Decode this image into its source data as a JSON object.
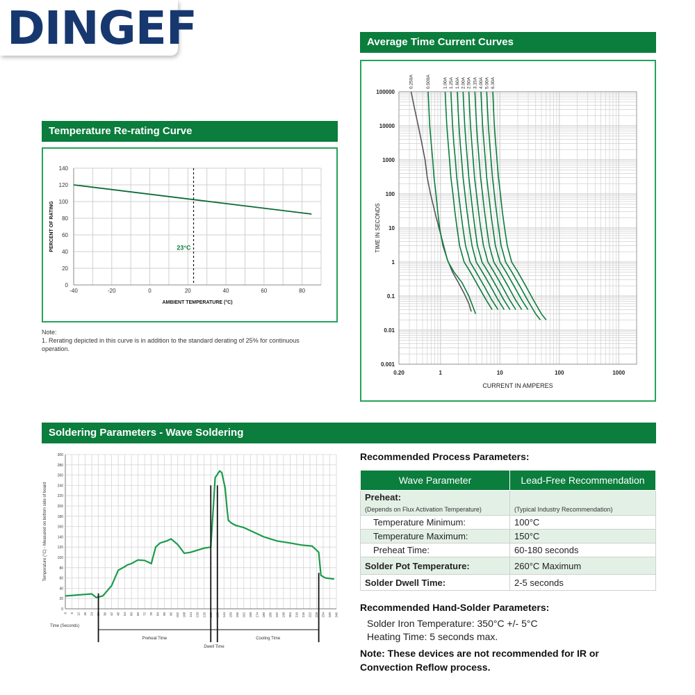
{
  "brand": {
    "logo_text": "DINGEF"
  },
  "rerating": {
    "title": "Temperature Re-rating Curve",
    "note_heading": "Note:",
    "note_text": "1. Rerating depicted in this curve is in addition to the standard derating of 25% for continuous operation."
  },
  "time_current": {
    "title": "Average Time Current Curves"
  },
  "soldering": {
    "title": "Soldering Parameters - Wave Soldering"
  },
  "process": {
    "heading": "Recommended Process Parameters:",
    "col1": "Wave Parameter",
    "col2": "Lead-Free Recommendation",
    "rows": [
      {
        "param": "Preheat:",
        "value": ""
      },
      {
        "param": "(Depends on Flux Activation Temperature)",
        "value": "(Typical Industry Recommendation)"
      },
      {
        "param": "Temperature Minimum:",
        "value": "100°C"
      },
      {
        "param": "Temperature Maximum:",
        "value": "150°C"
      },
      {
        "param": "Preheat Time:",
        "value": "60-180 seconds"
      },
      {
        "param": "Solder Pot Temperature:",
        "value": "260°C Maximum"
      },
      {
        "param": "Solder Dwell Time:",
        "value": "2-5 seconds"
      }
    ]
  },
  "hand_solder": {
    "heading": "Recommended Hand-Solder Parameters:",
    "line1": "Solder Iron Temperature: 350°C +/- 5°C",
    "line2": "Heating Time: 5 seconds max."
  },
  "bottom_note": "Note: These devices are not recommended for IR or Convection Reflow process.",
  "chart_data": [
    {
      "type": "line",
      "title": "Temperature Re-rating Curve",
      "xlabel": "AMBIENT TEMPERATURE (°C)",
      "ylabel": "PERCENT OF RATING",
      "xlim": [
        -40,
        90
      ],
      "ylim": [
        0,
        140
      ],
      "x_ticks": [
        -40,
        -20,
        0,
        20,
        40,
        60,
        80
      ],
      "y_ticks": [
        0,
        20,
        40,
        60,
        80,
        100,
        120,
        140
      ],
      "grid": true,
      "series": [
        {
          "x": [
            -40,
            85
          ],
          "values": [
            120,
            85
          ]
        }
      ],
      "annotations": [
        {
          "x": 23,
          "label": "23°C"
        }
      ]
    },
    {
      "type": "line",
      "title": "Average Time Current Curves",
      "xlabel": "CURRENT IN AMPERES",
      "ylabel": "TIME IN SECONDS",
      "x_scale": "log",
      "y_scale": "log",
      "x_ticks": [
        "0.20",
        "1",
        "10",
        "100",
        "1000"
      ],
      "y_ticks": [
        "0.001",
        "0.01",
        "0.1",
        "1",
        "10",
        "100",
        "1000",
        "10000",
        "100000"
      ],
      "grid": true,
      "series": [
        {
          "name": "0.250A",
          "color": "#555555",
          "x": [
            0.32,
            0.37,
            0.45,
            0.55,
            0.6,
            0.68,
            0.85,
            1.05,
            1.3,
            1.6,
            2.0,
            2.5,
            3.0,
            3.3
          ],
          "values": [
            100000,
            30000,
            6000,
            1000,
            300,
            100,
            20,
            5,
            1.2,
            0.5,
            0.25,
            0.12,
            0.06,
            0.035
          ]
        },
        {
          "name": "0.500A",
          "color": "#0b7d3d",
          "x": [
            0.62,
            0.64,
            0.66,
            0.7,
            0.74,
            0.78,
            0.84,
            0.9,
            0.97,
            1.1,
            1.35,
            1.7,
            2.3,
            3.0,
            3.5,
            3.9
          ],
          "values": [
            100000,
            30000,
            10000,
            3000,
            1000,
            300,
            100,
            30,
            10,
            3,
            1,
            0.5,
            0.25,
            0.1,
            0.05,
            0.03
          ]
        },
        {
          "name": "1.00A",
          "color": "#0b7d3d",
          "x": [
            1.2,
            1.24,
            1.28,
            1.35,
            1.42,
            1.5,
            1.62,
            1.75,
            1.9,
            2.1,
            2.5,
            3.2,
            4.3,
            5.8,
            7.4
          ],
          "values": [
            100000,
            30000,
            10000,
            3000,
            1000,
            300,
            100,
            30,
            10,
            3,
            1,
            0.5,
            0.2,
            0.08,
            0.04
          ]
        },
        {
          "name": "1.25A",
          "color": "#0b7d3d",
          "x": [
            1.5,
            1.55,
            1.6,
            1.68,
            1.78,
            1.88,
            2.02,
            2.2,
            2.38,
            2.65,
            3.15,
            4.0,
            5.4,
            7.2,
            9.3
          ],
          "values": [
            100000,
            30000,
            10000,
            3000,
            1000,
            300,
            100,
            30,
            10,
            3,
            1,
            0.5,
            0.2,
            0.08,
            0.04
          ]
        },
        {
          "name": "1.60A",
          "color": "#0b7d3d",
          "x": [
            1.92,
            1.98,
            2.05,
            2.15,
            2.27,
            2.4,
            2.58,
            2.8,
            3.05,
            3.4,
            4.0,
            5.1,
            6.9,
            9.2,
            11.8
          ],
          "values": [
            100000,
            30000,
            10000,
            3000,
            1000,
            300,
            100,
            30,
            10,
            3,
            1,
            0.5,
            0.2,
            0.08,
            0.04
          ]
        },
        {
          "name": "2.00A",
          "color": "#0b7d3d",
          "x": [
            2.4,
            2.48,
            2.56,
            2.7,
            2.84,
            3.0,
            3.23,
            3.5,
            3.8,
            4.2,
            5.0,
            6.4,
            8.6,
            11.5,
            14.8
          ],
          "values": [
            100000,
            30000,
            10000,
            3000,
            1000,
            300,
            100,
            30,
            10,
            3,
            1,
            0.5,
            0.2,
            0.08,
            0.04
          ]
        },
        {
          "name": "2.50A",
          "color": "#0b7d3d",
          "x": [
            3.0,
            3.1,
            3.2,
            3.37,
            3.55,
            3.75,
            4.04,
            4.38,
            4.75,
            5.3,
            6.3,
            8.0,
            10.8,
            14.4,
            18.5
          ],
          "values": [
            100000,
            30000,
            10000,
            3000,
            1000,
            300,
            100,
            30,
            10,
            3,
            1,
            0.5,
            0.2,
            0.08,
            0.04
          ]
        },
        {
          "name": "3.15A",
          "color": "#0b7d3d",
          "x": [
            3.8,
            3.92,
            4.05,
            4.25,
            4.48,
            4.73,
            5.1,
            5.52,
            6.0,
            6.65,
            7.9,
            10.1,
            13.6,
            18.1,
            23.3
          ],
          "values": [
            100000,
            30000,
            10000,
            3000,
            1000,
            300,
            100,
            30,
            10,
            3,
            1,
            0.5,
            0.2,
            0.08,
            0.04
          ]
        },
        {
          "name": "4.00A",
          "color": "#0b7d3d",
          "x": [
            4.8,
            4.96,
            5.12,
            5.4,
            5.68,
            6.0,
            6.46,
            7.0,
            7.6,
            8.4,
            10.0,
            12.8,
            17.2,
            23.0,
            29.6
          ],
          "values": [
            100000,
            30000,
            10000,
            3000,
            1000,
            300,
            100,
            30,
            10,
            3,
            1,
            0.5,
            0.2,
            0.08,
            0.04
          ]
        },
        {
          "name": "5.00A",
          "color": "#0b7d3d",
          "x": [
            6.0,
            6.2,
            6.4,
            6.74,
            7.1,
            7.5,
            8.08,
            8.75,
            9.5,
            10.5,
            12.5,
            16.0,
            21.5,
            28.8,
            40.0,
            48.0
          ],
          "values": [
            100000,
            30000,
            10000,
            3000,
            1000,
            300,
            100,
            30,
            10,
            3,
            1,
            0.5,
            0.2,
            0.08,
            0.03,
            0.02
          ]
        },
        {
          "name": "6.30A",
          "color": "#0b7d3d",
          "x": [
            7.6,
            7.82,
            8.06,
            8.5,
            8.95,
            9.45,
            10.2,
            11.0,
            12.0,
            13.3,
            15.8,
            20.2,
            27.1,
            36.2,
            50.0,
            60.0
          ],
          "values": [
            100000,
            30000,
            10000,
            3000,
            1000,
            300,
            100,
            30,
            10,
            3,
            1,
            0.5,
            0.2,
            0.08,
            0.03,
            0.02
          ]
        }
      ]
    },
    {
      "type": "line",
      "title": "Soldering Parameters - Wave Soldering",
      "xlabel": "Time (Seconds)",
      "ylabel": "Temperature (°C) - Measured on bottom side of board",
      "xlim": [
        0,
        246
      ],
      "ylim": [
        0,
        300
      ],
      "x_ticks": [
        0,
        6,
        12,
        18,
        24,
        30,
        36,
        42,
        48,
        54,
        60,
        66,
        72,
        78,
        84,
        90,
        96,
        102,
        108,
        114,
        120,
        126,
        132,
        138,
        144,
        150,
        156,
        162,
        168,
        174,
        180,
        186,
        192,
        198,
        204,
        210,
        216,
        222,
        228,
        234,
        240,
        246
      ],
      "y_ticks": [
        0,
        20,
        40,
        60,
        80,
        100,
        120,
        140,
        160,
        180,
        200,
        220,
        240,
        260,
        280,
        300
      ],
      "grid": true,
      "series": [
        {
          "x": [
            0,
            12,
            24,
            28,
            34,
            42,
            48,
            54,
            56,
            60,
            66,
            72,
            78,
            82,
            86,
            92,
            96,
            102,
            108,
            114,
            120,
            126,
            132,
            136,
            140,
            142,
            145,
            147,
            148,
            150,
            152,
            155,
            162,
            170,
            180,
            192,
            204,
            214,
            224,
            230,
            232,
            236,
            244
          ],
          "values": [
            25,
            27,
            29,
            22,
            25,
            45,
            75,
            82,
            85,
            88,
            95,
            94,
            88,
            120,
            128,
            132,
            136,
            125,
            108,
            110,
            114,
            118,
            120,
            255,
            268,
            265,
            235,
            190,
            172,
            168,
            165,
            162,
            158,
            150,
            140,
            132,
            128,
            124,
            122,
            110,
            65,
            60,
            58
          ]
        }
      ],
      "annotations": [
        {
          "label": "Preheat Time",
          "from": 30,
          "to": 132
        },
        {
          "label": "Dwell Time",
          "from": 132,
          "to": 138
        },
        {
          "label": "Cooling Time",
          "from": 138,
          "to": 230
        }
      ]
    }
  ]
}
